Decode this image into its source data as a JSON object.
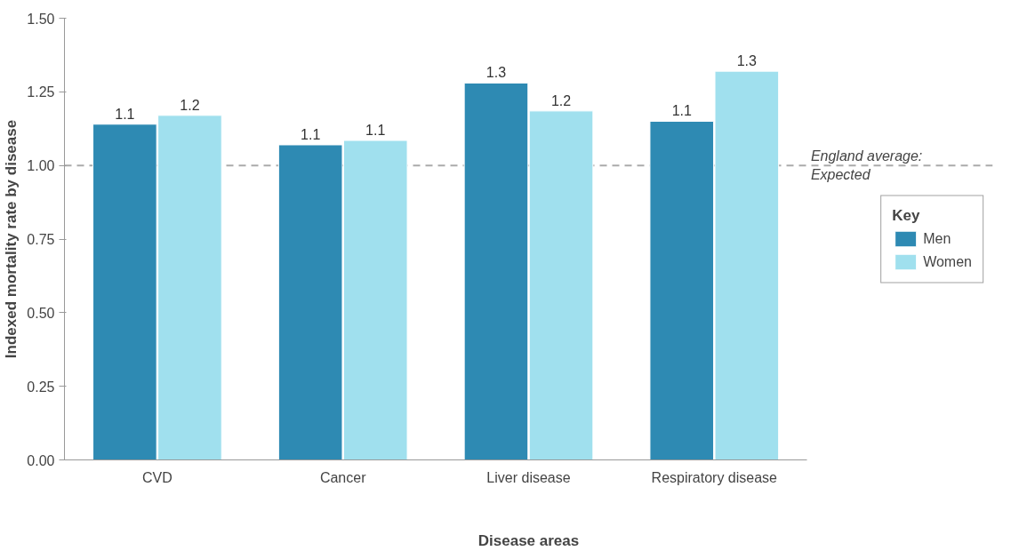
{
  "chart_data": {
    "type": "bar",
    "xlabel": "Disease areas",
    "ylabel": "Indexed mortality rate by disease",
    "legend_title": "Key",
    "categories": [
      "CVD",
      "Cancer",
      "Liver disease",
      "Respiratory disease"
    ],
    "series": [
      {
        "name": "Men",
        "color": "#2e8ab3",
        "values": [
          1.14,
          1.07,
          1.28,
          1.15
        ],
        "value_labels": [
          "1.1",
          "1.1",
          "1.3",
          "1.1"
        ]
      },
      {
        "name": "Women",
        "color": "#a0e0ee",
        "values": [
          1.17,
          1.085,
          1.185,
          1.32
        ],
        "value_labels": [
          "1.2",
          "1.1",
          "1.2",
          "1.3"
        ]
      }
    ],
    "ylim": [
      0,
      1.5
    ],
    "yticks": [
      {
        "value": 0,
        "label": "0.00"
      },
      {
        "value": 0.25,
        "label": "0.25"
      },
      {
        "value": 0.5,
        "label": "0.50"
      },
      {
        "value": 0.75,
        "label": "0.75"
      },
      {
        "value": 1,
        "label": "1.00"
      },
      {
        "value": 1.25,
        "label": "1.25"
      },
      {
        "value": 1.5,
        "label": "1.50"
      }
    ],
    "ref_lines": [
      {
        "axis": "y",
        "value": 1,
        "label": "England average:\nExpected",
        "color": "#aaaaaa",
        "line_style": "dashed"
      }
    ],
    "grid": false,
    "legend": "right"
  }
}
